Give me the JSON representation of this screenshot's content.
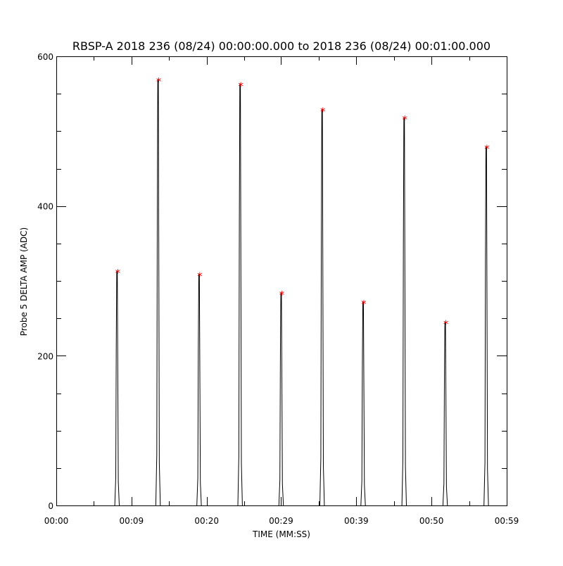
{
  "chart_data": {
    "type": "line",
    "title": "RBSP-A 2018 236 (08/24) 00:00:00.000 to 2018 236 (08/24) 00:01:00.000",
    "xlabel": "TIME (MM:SS)",
    "ylabel": "Probe 5 DELTA AMP (ADC)",
    "xlim_seconds": [
      0,
      59.3
    ],
    "ylim": [
      0,
      600
    ],
    "x_tick_labels": [
      "00:00",
      "00:09",
      "00:20",
      "00:29",
      "00:39",
      "00:50",
      "00:59"
    ],
    "x_tick_seconds": [
      0,
      9.9,
      19.8,
      29.6,
      39.5,
      49.4,
      59.3
    ],
    "y_tick_labels": [
      "0",
      "200",
      "400",
      "600"
    ],
    "y_tick_values": [
      0,
      200,
      400,
      600
    ],
    "y_minor_step": 50,
    "x_minor_per_major": 2,
    "grid": false,
    "series": [
      {
        "marker": "*",
        "marker_color": "#ff0000",
        "line_color": "#000000",
        "peaks": [
          {
            "x": 8.0,
            "y": 313
          },
          {
            "x": 13.4,
            "y": 569
          },
          {
            "x": 18.8,
            "y": 309
          },
          {
            "x": 24.2,
            "y": 563
          },
          {
            "x": 29.6,
            "y": 284
          },
          {
            "x": 35.0,
            "y": 529
          },
          {
            "x": 40.4,
            "y": 272
          },
          {
            "x": 45.8,
            "y": 518
          },
          {
            "x": 51.2,
            "y": 245
          },
          {
            "x": 56.6,
            "y": 479
          }
        ]
      }
    ]
  }
}
